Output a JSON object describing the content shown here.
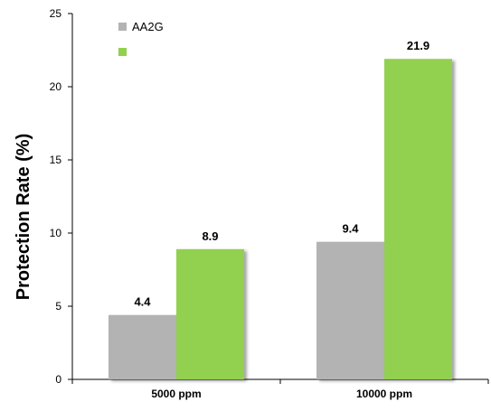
{
  "chart_data": {
    "type": "bar",
    "title": "",
    "xlabel": "",
    "ylabel": "Protection Rate (%)",
    "ylim": [
      0,
      25
    ],
    "yticks": [
      0,
      5,
      10,
      15,
      20,
      25
    ],
    "categories": [
      "5000 ppm",
      "10000 ppm"
    ],
    "series": [
      {
        "name": "AA2G",
        "values": [
          4.4,
          9.4
        ],
        "labels": [
          "4.4",
          "9.4"
        ],
        "color": "#b3b3b3"
      },
      {
        "values": [
          8.9,
          21.9
        ],
        "labels": [
          "8.9",
          "21.9"
        ],
        "color": "#92d050"
      }
    ],
    "legend_position": "top-left",
    "grid": false
  }
}
